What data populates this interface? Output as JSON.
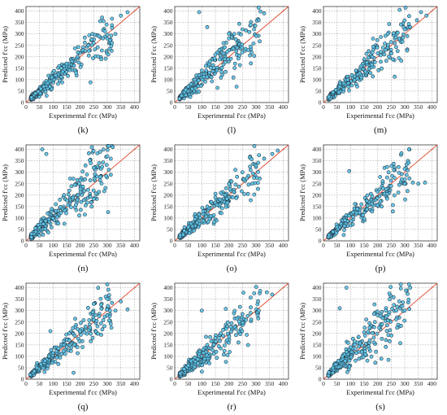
{
  "figure": {
    "x_label": "Experimental f'cc (MPa)",
    "y_label": "Predicted f'cc (MPa)",
    "ticks": [
      0,
      50,
      100,
      150,
      200,
      250,
      300,
      350,
      400
    ],
    "colors": {
      "points": "#5cc3e6",
      "point_edge": "#1f2d3a",
      "reference_line": "#e0442c",
      "grid": "#8a8a8a"
    }
  },
  "chart_data": [
    {
      "type": "scatter",
      "panel_label": "(k)",
      "xlabel": "Experimental f'cc (MPa)",
      "ylabel": "Predicted f'cc (MPa)",
      "xlim": [
        0,
        420
      ],
      "ylim": [
        0,
        420
      ],
      "grid": true,
      "reference_line": "y = x",
      "spread": 0.18,
      "outlier_style": "balanced",
      "points": [
        [
          20,
          22
        ],
        [
          35,
          40
        ],
        [
          45,
          48
        ],
        [
          55,
          60
        ],
        [
          65,
          70
        ],
        [
          80,
          85
        ],
        [
          95,
          110
        ],
        [
          110,
          120
        ],
        [
          130,
          150
        ],
        [
          150,
          170
        ],
        [
          170,
          180
        ],
        [
          190,
          200
        ],
        [
          210,
          230
        ],
        [
          230,
          250
        ],
        [
          250,
          260
        ],
        [
          270,
          290
        ],
        [
          300,
          280
        ],
        [
          330,
          300
        ],
        [
          350,
          380
        ],
        [
          375,
          395
        ]
      ]
    },
    {
      "type": "scatter",
      "panel_label": "(l)",
      "xlabel": "Experimental f'cc (MPa)",
      "ylabel": "Predicted f'cc (MPa)",
      "xlim": [
        0,
        420
      ],
      "ylim": [
        0,
        420
      ],
      "grid": true,
      "reference_line": "y = x",
      "spread": 0.22,
      "outlier_style": "over",
      "points": [
        [
          25,
          30
        ],
        [
          40,
          55
        ],
        [
          50,
          70
        ],
        [
          60,
          80
        ],
        [
          75,
          100
        ],
        [
          90,
          120
        ],
        [
          100,
          140
        ],
        [
          115,
          160
        ],
        [
          130,
          180
        ],
        [
          150,
          210
        ],
        [
          165,
          230
        ],
        [
          180,
          260
        ],
        [
          200,
          280
        ],
        [
          220,
          300
        ],
        [
          250,
          320
        ],
        [
          280,
          340
        ],
        [
          310,
          360
        ],
        [
          330,
          390
        ],
        [
          90,
          395
        ],
        [
          120,
          330
        ]
      ]
    },
    {
      "type": "scatter",
      "panel_label": "(m)",
      "xlabel": "Experimental f'cc (MPa)",
      "ylabel": "Predicted f'cc (MPa)",
      "xlim": [
        0,
        420
      ],
      "ylim": [
        0,
        420
      ],
      "grid": true,
      "reference_line": "y = x",
      "spread": 0.2,
      "outlier_style": "balanced",
      "points": [
        [
          20,
          25
        ],
        [
          35,
          45
        ],
        [
          45,
          55
        ],
        [
          60,
          70
        ],
        [
          75,
          85
        ],
        [
          90,
          100
        ],
        [
          105,
          120
        ],
        [
          120,
          140
        ],
        [
          140,
          160
        ],
        [
          160,
          175
        ],
        [
          180,
          200
        ],
        [
          200,
          215
        ],
        [
          220,
          240
        ],
        [
          250,
          265
        ],
        [
          280,
          280
        ],
        [
          300,
          320
        ],
        [
          320,
          330
        ],
        [
          345,
          360
        ],
        [
          360,
          395
        ],
        [
          380,
          380
        ]
      ]
    },
    {
      "type": "scatter",
      "panel_label": "(n)",
      "xlabel": "Experimental f'cc (MPa)",
      "ylabel": "Predicted f'cc (MPa)",
      "xlim": [
        0,
        420
      ],
      "ylim": [
        0,
        420
      ],
      "grid": true,
      "reference_line": "y = x",
      "spread": 0.24,
      "outlier_style": "over",
      "points": [
        [
          20,
          30
        ],
        [
          35,
          55
        ],
        [
          45,
          70
        ],
        [
          55,
          85
        ],
        [
          65,
          100
        ],
        [
          80,
          120
        ],
        [
          95,
          140
        ],
        [
          110,
          160
        ],
        [
          125,
          180
        ],
        [
          140,
          200
        ],
        [
          160,
          220
        ],
        [
          180,
          245
        ],
        [
          200,
          265
        ],
        [
          225,
          290
        ],
        [
          250,
          320
        ],
        [
          270,
          340
        ],
        [
          300,
          370
        ],
        [
          320,
          410
        ],
        [
          60,
          400
        ],
        [
          75,
          380
        ]
      ]
    },
    {
      "type": "scatter",
      "panel_label": "(o)",
      "xlabel": "Experimental f'cc (MPa)",
      "ylabel": "Predicted f'cc (MPa)",
      "xlim": [
        0,
        420
      ],
      "ylim": [
        0,
        420
      ],
      "grid": true,
      "reference_line": "y = x",
      "spread": 0.2,
      "outlier_style": "balanced",
      "points": [
        [
          20,
          25
        ],
        [
          35,
          45
        ],
        [
          50,
          60
        ],
        [
          60,
          75
        ],
        [
          75,
          95
        ],
        [
          90,
          115
        ],
        [
          105,
          130
        ],
        [
          120,
          150
        ],
        [
          135,
          170
        ],
        [
          150,
          190
        ],
        [
          170,
          210
        ],
        [
          190,
          230
        ],
        [
          210,
          260
        ],
        [
          230,
          280
        ],
        [
          250,
          300
        ],
        [
          280,
          310
        ],
        [
          300,
          330
        ],
        [
          330,
          360
        ],
        [
          360,
          380
        ],
        [
          380,
          395
        ]
      ]
    },
    {
      "type": "scatter",
      "panel_label": "(p)",
      "xlabel": "Experimental f'cc (MPa)",
      "ylabel": "Predicted f'cc (MPa)",
      "xlim": [
        0,
        420
      ],
      "ylim": [
        0,
        420
      ],
      "grid": true,
      "reference_line": "y = x",
      "spread": 0.18,
      "outlier_style": "balanced",
      "points": [
        [
          20,
          25
        ],
        [
          35,
          40
        ],
        [
          50,
          60
        ],
        [
          65,
          75
        ],
        [
          80,
          90
        ],
        [
          95,
          110
        ],
        [
          110,
          125
        ],
        [
          125,
          140
        ],
        [
          140,
          160
        ],
        [
          160,
          175
        ],
        [
          180,
          195
        ],
        [
          200,
          215
        ],
        [
          220,
          230
        ],
        [
          250,
          240
        ],
        [
          280,
          245
        ],
        [
          300,
          250
        ],
        [
          330,
          255
        ],
        [
          350,
          250
        ],
        [
          375,
          255
        ],
        [
          95,
          305
        ]
      ]
    },
    {
      "type": "scatter",
      "panel_label": "(q)",
      "xlabel": "Experimental f'cc (MPa)",
      "ylabel": "Predicted f'cc (MPa)",
      "xlim": [
        0,
        420
      ],
      "ylim": [
        0,
        420
      ],
      "grid": true,
      "reference_line": "y = x",
      "spread": 0.2,
      "outlier_style": "balanced",
      "points": [
        [
          15,
          20
        ],
        [
          30,
          35
        ],
        [
          40,
          50
        ],
        [
          55,
          65
        ],
        [
          70,
          80
        ],
        [
          85,
          100
        ],
        [
          100,
          115
        ],
        [
          120,
          135
        ],
        [
          140,
          150
        ],
        [
          160,
          170
        ],
        [
          180,
          190
        ],
        [
          200,
          210
        ],
        [
          220,
          230
        ],
        [
          250,
          260
        ],
        [
          270,
          275
        ],
        [
          300,
          280
        ],
        [
          330,
          300
        ],
        [
          350,
          340
        ],
        [
          375,
          305
        ],
        [
          90,
          210
        ]
      ]
    },
    {
      "type": "scatter",
      "panel_label": "(r)",
      "xlabel": "Experimental f'cc (MPa)",
      "ylabel": "Predicted f'cc (MPa)",
      "xlim": [
        0,
        420
      ],
      "ylim": [
        0,
        420
      ],
      "grid": true,
      "reference_line": "y = x",
      "spread": 0.22,
      "outlier_style": "balanced",
      "points": [
        [
          20,
          25
        ],
        [
          35,
          45
        ],
        [
          50,
          60
        ],
        [
          60,
          80
        ],
        [
          75,
          95
        ],
        [
          90,
          110
        ],
        [
          105,
          130
        ],
        [
          120,
          150
        ],
        [
          135,
          165
        ],
        [
          150,
          180
        ],
        [
          170,
          200
        ],
        [
          190,
          220
        ],
        [
          210,
          245
        ],
        [
          230,
          265
        ],
        [
          250,
          285
        ],
        [
          280,
          290
        ],
        [
          310,
          300
        ],
        [
          340,
          380
        ],
        [
          360,
          370
        ],
        [
          100,
          300
        ]
      ]
    },
    {
      "type": "scatter",
      "panel_label": "(s)",
      "xlabel": "Experimental f'cc (MPa)",
      "ylabel": "Predicted f'cc (MPa)",
      "xlim": [
        0,
        420
      ],
      "ylim": [
        0,
        420
      ],
      "grid": true,
      "reference_line": "y = x",
      "spread": 0.25,
      "outlier_style": "over",
      "points": [
        [
          20,
          30
        ],
        [
          35,
          50
        ],
        [
          45,
          65
        ],
        [
          55,
          80
        ],
        [
          70,
          100
        ],
        [
          85,
          120
        ],
        [
          100,
          140
        ],
        [
          115,
          165
        ],
        [
          130,
          185
        ],
        [
          150,
          205
        ],
        [
          170,
          225
        ],
        [
          190,
          250
        ],
        [
          210,
          275
        ],
        [
          230,
          300
        ],
        [
          260,
          325
        ],
        [
          280,
          340
        ],
        [
          300,
          300
        ],
        [
          320,
          400
        ],
        [
          85,
          400
        ],
        [
          60,
          310
        ]
      ]
    }
  ]
}
